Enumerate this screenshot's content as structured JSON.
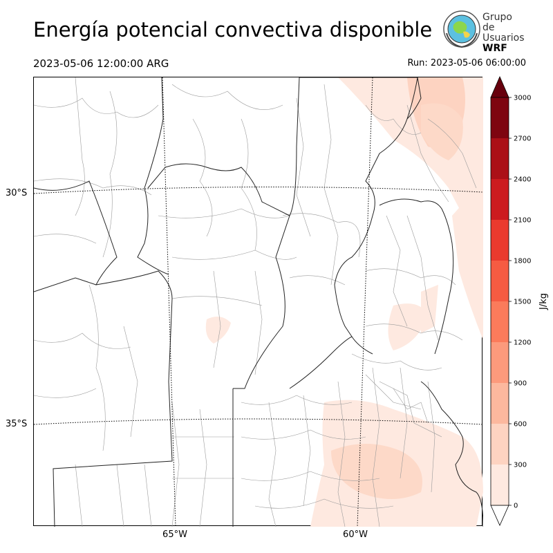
{
  "header": {
    "title": "Energía potencial convectiva disponible",
    "valid_time": "2023-05-06 12:00:00 ARG",
    "run_time": "Run: 2023-05-06 06:00:00"
  },
  "logo": {
    "line1": "Grupo de",
    "line2": "Usuarios",
    "line3": "WRF",
    "icon": "globe-emblem-icon"
  },
  "map": {
    "lat_labels": [
      {
        "text": "30°S",
        "lat": -30
      },
      {
        "text": "35°S",
        "lat": -35
      }
    ],
    "lon_labels": [
      {
        "text": "65°W",
        "lon": -65
      },
      {
        "text": "60°W",
        "lon": -60
      }
    ]
  },
  "colorbar": {
    "label": "J/kg",
    "ticks": [
      "0",
      "300",
      "600",
      "900",
      "1200",
      "1500",
      "1800",
      "2100",
      "2400",
      "2700",
      "3000"
    ],
    "colors": [
      "#fee9e0",
      "#fdd3c1",
      "#fcb89e",
      "#fc9a7c",
      "#fb7b5b",
      "#f65b42",
      "#ea3a2e",
      "#cc1b1f",
      "#ab1017",
      "#7e0510"
    ],
    "over_color": "#67000d",
    "under_color": "#ffffff"
  },
  "colors": {
    "light_fill": "#fee9e0",
    "mid_fill": "#fdd9c8"
  }
}
